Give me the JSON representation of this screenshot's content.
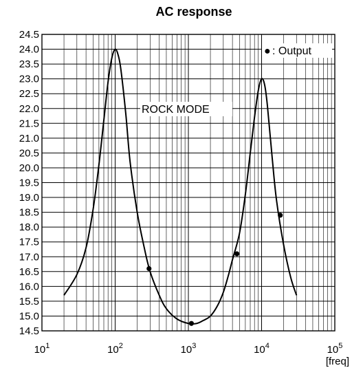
{
  "chart_data": {
    "type": "line",
    "title": "AC response",
    "xlabel": "[freq]",
    "ylabel": "",
    "xscale": "log",
    "xlim": [
      10,
      100000
    ],
    "ylim": [
      14.5,
      24.5
    ],
    "grid": true,
    "x_tick_labels": [
      {
        "base": "10",
        "exp": "1"
      },
      {
        "base": "10",
        "exp": "2"
      },
      {
        "base": "10",
        "exp": "3"
      },
      {
        "base": "10",
        "exp": "4"
      },
      {
        "base": "10",
        "exp": "5"
      }
    ],
    "x_tick_values": [
      10,
      100,
      1000,
      10000,
      100000
    ],
    "y_ticks": [
      "24.5",
      "24.0",
      "23.5",
      "23.0",
      "22.5",
      "22.0",
      "21.5",
      "21.0",
      "20.5",
      "20.0",
      "19.5",
      "19.0",
      "18.5",
      "18.0",
      "17.5",
      "17.0",
      "16.5",
      "16.0",
      "15.5",
      "15.0",
      "14.5"
    ],
    "y_tick_values": [
      24.5,
      24.0,
      23.5,
      23.0,
      22.5,
      22.0,
      21.5,
      21.0,
      20.5,
      20.0,
      19.5,
      19.0,
      18.5,
      18.0,
      17.5,
      17.0,
      16.5,
      16.0,
      15.5,
      15.0,
      14.5
    ],
    "curve": {
      "x": [
        20,
        30,
        40,
        50,
        60,
        70,
        80,
        90,
        100,
        110,
        120,
        140,
        160,
        200,
        250,
        300,
        400,
        500,
        700,
        1000,
        1300,
        1600,
        2000,
        2500,
        3000,
        3500,
        4000,
        5000,
        6000,
        7000,
        8000,
        9000,
        10000,
        11000,
        12000,
        14000,
        16000,
        20000,
        25000,
        30000
      ],
      "y": [
        15.7,
        16.4,
        17.3,
        18.6,
        20.1,
        21.6,
        22.9,
        23.7,
        24.0,
        23.8,
        23.3,
        21.8,
        20.2,
        18.5,
        17.3,
        16.5,
        15.7,
        15.25,
        14.9,
        14.75,
        14.75,
        14.85,
        15.0,
        15.35,
        15.8,
        16.35,
        16.9,
        17.8,
        19.1,
        20.5,
        21.7,
        22.6,
        23.0,
        22.8,
        22.1,
        20.3,
        18.9,
        17.4,
        16.3,
        15.7
      ]
    },
    "points": {
      "name": "Output",
      "x": [
        290,
        1100,
        4600,
        18000
      ],
      "y": [
        16.6,
        14.75,
        17.1,
        18.4
      ]
    },
    "legend": {
      "marker": "●",
      "text": ": Output",
      "position": "top-right"
    },
    "annotation": "ROCK MODE"
  }
}
